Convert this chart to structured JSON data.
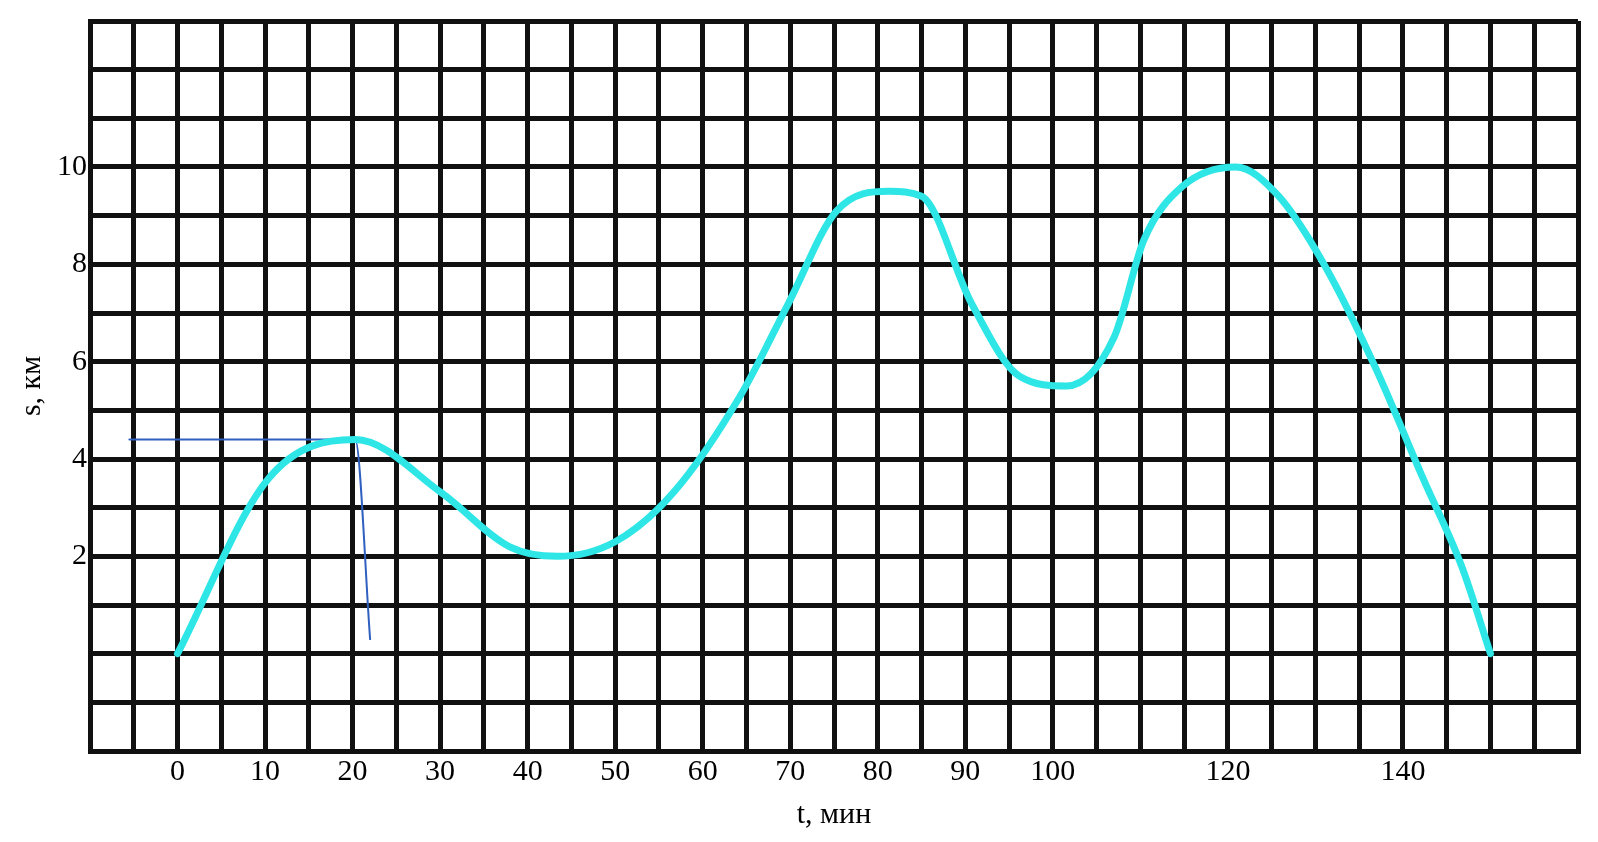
{
  "chart_data": {
    "type": "line",
    "xlabel": "t, мин",
    "ylabel": "s, км",
    "xlim": [
      -10,
      160
    ],
    "ylim": [
      -2,
      13
    ],
    "xticks": [
      {
        "value": -10,
        "label": null
      },
      {
        "value": -5,
        "label": null
      },
      0,
      {
        "value": 5,
        "label": null
      },
      10,
      {
        "value": 15,
        "label": null
      },
      20,
      {
        "value": 25,
        "label": null
      },
      30,
      {
        "value": 35,
        "label": null
      },
      40,
      {
        "value": 45,
        "label": null
      },
      50,
      {
        "value": 55,
        "label": null
      },
      60,
      {
        "value": 65,
        "label": null
      },
      70,
      {
        "value": 75,
        "label": null
      },
      80,
      {
        "value": 85,
        "label": null
      },
      90,
      {
        "value": 95,
        "label": null
      },
      100,
      {
        "value": 105,
        "label": null
      },
      {
        "value": 110,
        "label": null
      },
      {
        "value": 115,
        "label": null
      },
      120,
      {
        "value": 125,
        "label": null
      },
      {
        "value": 130,
        "label": null
      },
      {
        "value": 135,
        "label": null
      },
      140,
      {
        "value": 145,
        "label": null
      },
      {
        "value": 150,
        "label": null
      },
      {
        "value": 155,
        "label": null
      },
      {
        "value": 160,
        "label": null
      }
    ],
    "yticks": [
      {
        "value": -2,
        "label": null
      },
      {
        "value": -1,
        "label": null
      },
      {
        "value": 0,
        "label": null
      },
      {
        "value": 1,
        "label": null
      },
      2,
      {
        "value": 3,
        "label": null
      },
      4,
      {
        "value": 5,
        "label": null
      },
      6,
      {
        "value": 7,
        "label": null
      },
      8,
      {
        "value": 9,
        "label": null
      },
      10,
      {
        "value": 11,
        "label": null
      },
      {
        "value": 12,
        "label": null
      },
      {
        "value": 13,
        "label": null
      }
    ],
    "grid": true,
    "marker": "none",
    "line_style": "solid",
    "series": [
      {
        "color": "#2ee6e6",
        "x": [
          0,
          10.4,
          20.3,
          30.2,
          37.9,
          43.4,
          50,
          56.6,
          64.3,
          69.8,
          75.3,
          81.3,
          85,
          90.7,
          96.2,
          101.6,
          107,
          110.4,
          114.8,
          120.9,
          125.8,
          131.3,
          136.8,
          142.3,
          146.7,
          150
        ],
        "values": [
          0,
          3.6,
          4.4,
          3.3,
          2.2,
          2,
          2.3,
          3.3,
          5.3,
          7.2,
          9.1,
          9.5,
          9.4,
          7.2,
          5.7,
          5.5,
          6.5,
          8.5,
          9.6,
          10,
          9.4,
          7.9,
          5.9,
          3.6,
          1.8,
          0
        ]
      },
      {
        "color": "#2f5fbf",
        "x": [
          -5.5,
          20.3,
          22
        ],
        "values": [
          4.4,
          4.4,
          0.3
        ]
      }
    ]
  }
}
